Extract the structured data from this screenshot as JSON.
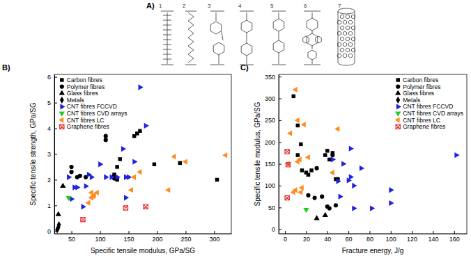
{
  "panel_a": {
    "label": "A)",
    "structures": [
      "1",
      "2",
      "3",
      "4",
      "5",
      "6",
      "7"
    ]
  },
  "chart_data": [
    {
      "type": "scatter",
      "title": "B)",
      "x_label": "Specific tensile modulus, GPa/SG",
      "y_label": "Specific tensile strength, GPa/SG",
      "xlim": [
        20,
        330
      ],
      "ylim": [
        -0.1,
        6.1
      ],
      "xticks": [
        50,
        100,
        150,
        200,
        250,
        300
      ],
      "yticks": [
        0,
        1,
        2,
        3,
        4,
        5,
        6
      ],
      "grid": false,
      "legend": "upper left",
      "series": [
        {
          "name": "Carbon fibres",
          "color": "#000000",
          "marker": "square",
          "x": [
            130,
            125,
            130,
            135,
            160,
            165,
            170,
            195,
            240,
            305
          ],
          "values": [
            2.0,
            2.2,
            2.5,
            2.8,
            3.7,
            3.8,
            3.9,
            2.6,
            2.65,
            2.0
          ]
        },
        {
          "name": "Polymer fibres",
          "color": "#000000",
          "marker": "circle",
          "x": [
            50,
            50,
            60,
            65,
            75,
            110,
            110,
            125,
            125
          ],
          "values": [
            2.3,
            2.5,
            2.1,
            2.15,
            2.1,
            3.7,
            3.55,
            2.05,
            2.15
          ]
        },
        {
          "name": "Glass fibres",
          "color": "#000000",
          "marker": "triangle-up",
          "x": [
            27,
            35
          ],
          "values": [
            0.65,
            1.75
          ]
        },
        {
          "name": "Metals",
          "color": "#000000",
          "marker": "diamond",
          "x": [
            25,
            26,
            27,
            28
          ],
          "values": [
            0.05,
            0.1,
            0.15,
            0.25
          ]
        },
        {
          "name": "CNT fibres FCCVD",
          "color": "#2020e0",
          "marker": "triangle-right",
          "x": [
            45,
            50,
            55,
            60,
            70,
            75,
            80,
            85,
            100,
            110,
            120,
            130,
            140,
            145,
            150,
            160,
            170,
            180,
            145
          ],
          "values": [
            2.1,
            1.25,
            1.7,
            1.7,
            0.95,
            1.75,
            2.2,
            2.1,
            2.6,
            2.1,
            2.1,
            2.1,
            3.2,
            2.1,
            2.1,
            2.7,
            5.6,
            4.1,
            1.3
          ]
        },
        {
          "name": "CNT fibres CVD arrays",
          "color": "#22cc22",
          "marker": "triangle-down",
          "x": [
            45
          ],
          "values": [
            1.3
          ]
        },
        {
          "name": "CNT fibres LC",
          "color": "#ff8c20",
          "marker": "triangle-left",
          "x": [
            80,
            85,
            85,
            88,
            90,
            95,
            155,
            160,
            170,
            220,
            230,
            250,
            320
          ],
          "values": [
            1.1,
            1.5,
            1.3,
            1.35,
            1.4,
            1.5,
            1.6,
            2.1,
            2.3,
            1.6,
            2.9,
            2.7,
            2.95
          ]
        },
        {
          "name": "Graphene fibres",
          "color": "#e03030",
          "marker": "square-x",
          "x": [
            70,
            145,
            180
          ],
          "values": [
            0.45,
            0.9,
            0.95
          ]
        }
      ]
    },
    {
      "type": "scatter",
      "title": "C)",
      "x_label": "Fracture energy, J/g",
      "y_label": "Specific tensile modulus, GPa/SG",
      "xlim": [
        -6,
        172
      ],
      "ylim": [
        -10,
        355
      ],
      "xticks": [
        0,
        20,
        40,
        60,
        80,
        100,
        120,
        140,
        160
      ],
      "yticks": [
        0,
        50,
        100,
        150,
        200,
        250,
        300,
        350
      ],
      "grid": false,
      "legend": "upper right",
      "series": [
        {
          "name": "Carbon fibres",
          "color": "#000000",
          "marker": "square",
          "x": [
            8,
            12,
            15,
            12,
            16,
            20,
            22,
            25,
            38,
            40,
            42,
            45,
            48,
            50
          ],
          "values": [
            305,
            238,
            195,
            170,
            135,
            130,
            125,
            135,
            170,
            180,
            160,
            175,
            115,
            115
          ]
        },
        {
          "name": "Polymer fibres",
          "color": "#000000",
          "marker": "circle",
          "x": [
            22,
            28,
            30,
            35,
            40,
            42,
            45,
            48
          ],
          "values": [
            78,
            72,
            140,
            75,
            52,
            48,
            170,
            55
          ]
        },
        {
          "name": "Glass fibres",
          "color": "#000000",
          "marker": "triangle-up",
          "x": [
            30,
            38
          ],
          "values": [
            25,
            32
          ]
        },
        {
          "name": "Metals",
          "color": "#000000",
          "marker": "diamond",
          "x": [],
          "values": []
        },
        {
          "name": "CNT fibres FCCVD",
          "color": "#2020e0",
          "marker": "triangle-right",
          "x": [
            45,
            50,
            55,
            62,
            62,
            65,
            65,
            72,
            82,
            100,
            100,
            162,
            60,
            52
          ],
          "values": [
            160,
            110,
            150,
            185,
            120,
            100,
            48,
            140,
            48,
            90,
            60,
            170,
            112,
            75
          ]
        },
        {
          "name": "CNT fibres CVD arrays",
          "color": "#22cc22",
          "marker": "triangle-down",
          "x": [
            20
          ],
          "values": [
            45
          ]
        },
        {
          "name": "CNT fibres LC",
          "color": "#ff8c20",
          "marker": "triangle-left",
          "x": [
            10,
            8,
            10,
            12,
            12,
            14,
            5,
            16,
            22,
            50,
            45,
            15,
            3,
            18
          ],
          "values": [
            320,
            85,
            90,
            155,
            250,
            160,
            220,
            95,
            165,
            230,
            130,
            85,
            150,
            240
          ]
        },
        {
          "name": "Graphene fibres",
          "color": "#e03030",
          "marker": "square-x",
          "x": [
            2,
            3,
            2
          ],
          "values": [
            178,
            148,
            72
          ]
        }
      ]
    }
  ]
}
